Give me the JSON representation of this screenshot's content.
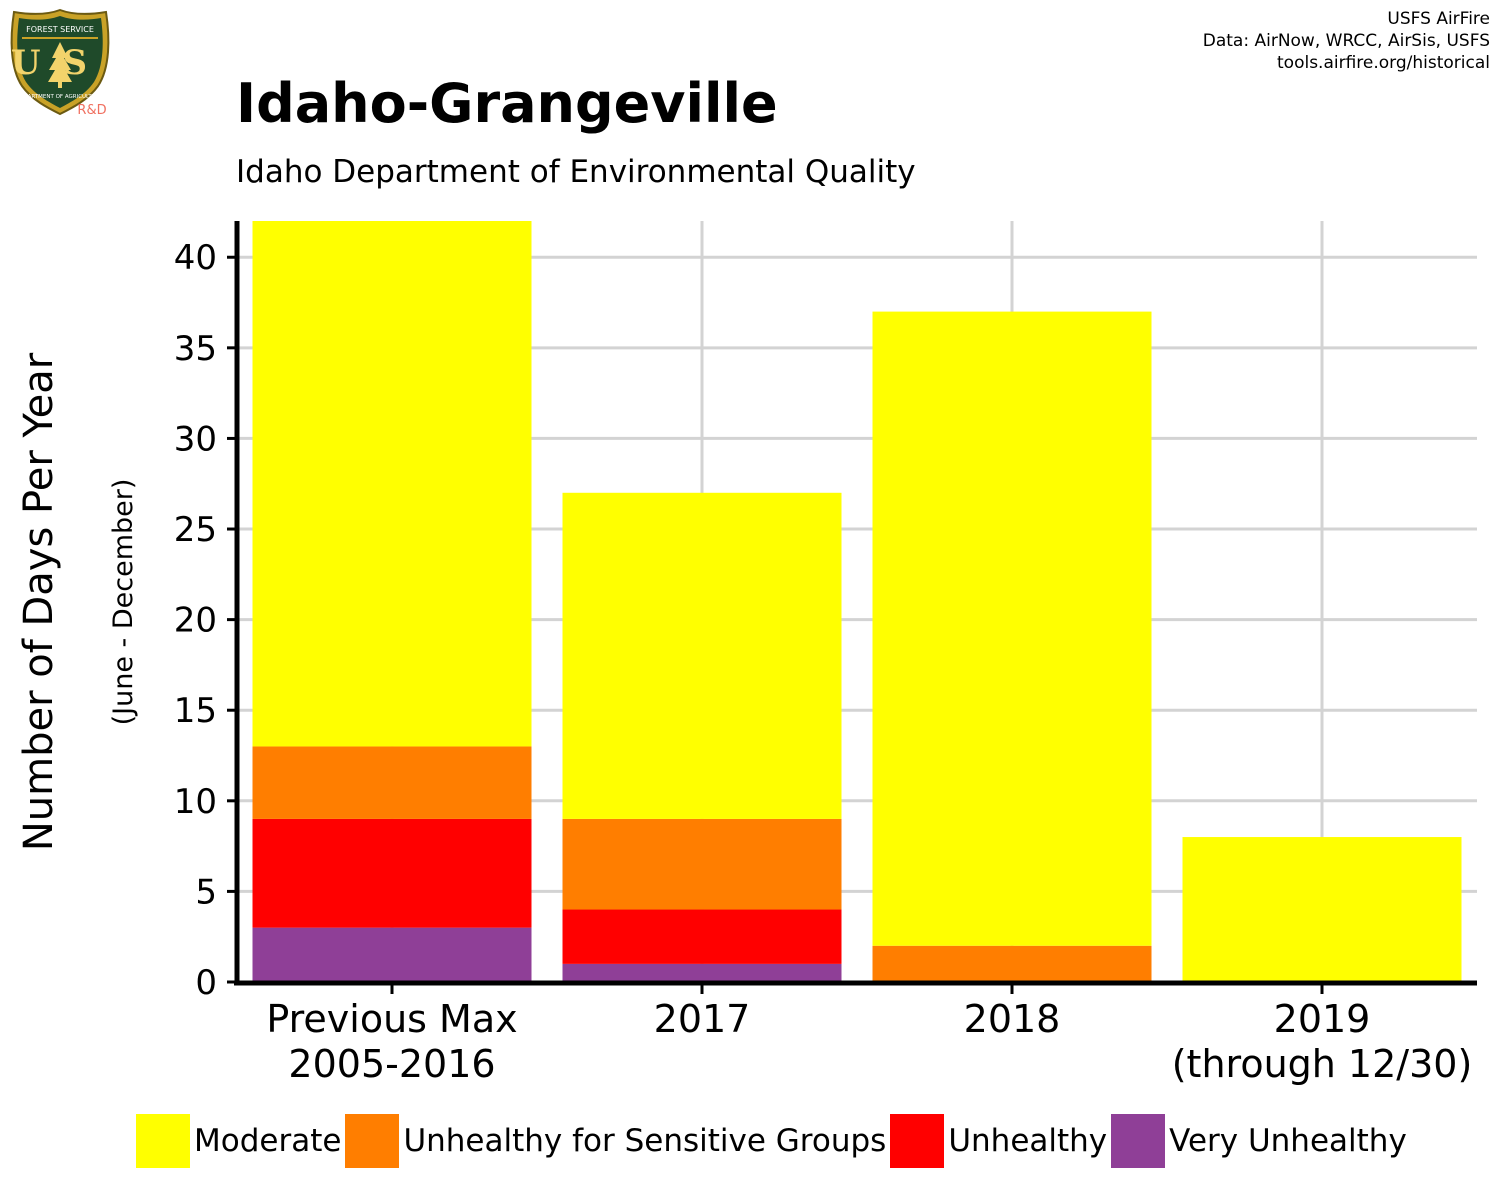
{
  "logo": {
    "icon": "usfs-shield-icon",
    "badge_top": "FOREST SERVICE",
    "badge_letters": "US",
    "badge_bottom": "DEPARTMENT OF AGRICULTURE",
    "rd_label": "R&D"
  },
  "credits": {
    "line1": "USFS AirFire",
    "line2": "Data: AirNow, WRCC, AirSis, USFS",
    "line3": "tools.airfire.org/historical"
  },
  "header": {
    "title": "Idaho-Grangeville",
    "subtitle": "Idaho Department of Environmental Quality"
  },
  "colors": {
    "Moderate": "#ffff00",
    "Unhealthy for Sensitive Groups": "#ff7e00",
    "Unhealthy": "#ff0000",
    "Very Unhealthy": "#8f3f97",
    "grid": "#d3d3d3",
    "axis": "#000000"
  },
  "chart_data": {
    "type": "bar",
    "stacked": true,
    "title": "Idaho-Grangeville",
    "subtitle": "Idaho Department of Environmental Quality",
    "ylabel": "Number of Days Per Year",
    "ylabel_sub": "(June - December)",
    "xlabel": "",
    "ylim": [
      0,
      42
    ],
    "yticks": [
      0,
      5,
      10,
      15,
      20,
      25,
      30,
      35,
      40
    ],
    "grid": true,
    "legend_position": "bottom",
    "categories": [
      [
        "Previous Max",
        "2005-2016"
      ],
      [
        "2017"
      ],
      [
        "2018"
      ],
      [
        "2019",
        "(through 12/30)"
      ]
    ],
    "series": [
      {
        "name": "Very Unhealthy",
        "values": [
          3,
          1,
          0,
          0
        ]
      },
      {
        "name": "Unhealthy",
        "values": [
          6,
          3,
          0,
          0
        ]
      },
      {
        "name": "Unhealthy for Sensitive Groups",
        "values": [
          4,
          5,
          2,
          0
        ]
      },
      {
        "name": "Moderate",
        "values": [
          29,
          18,
          35,
          8
        ]
      }
    ],
    "legend": [
      "Moderate",
      "Unhealthy for Sensitive Groups",
      "Unhealthy",
      "Very Unhealthy"
    ]
  }
}
